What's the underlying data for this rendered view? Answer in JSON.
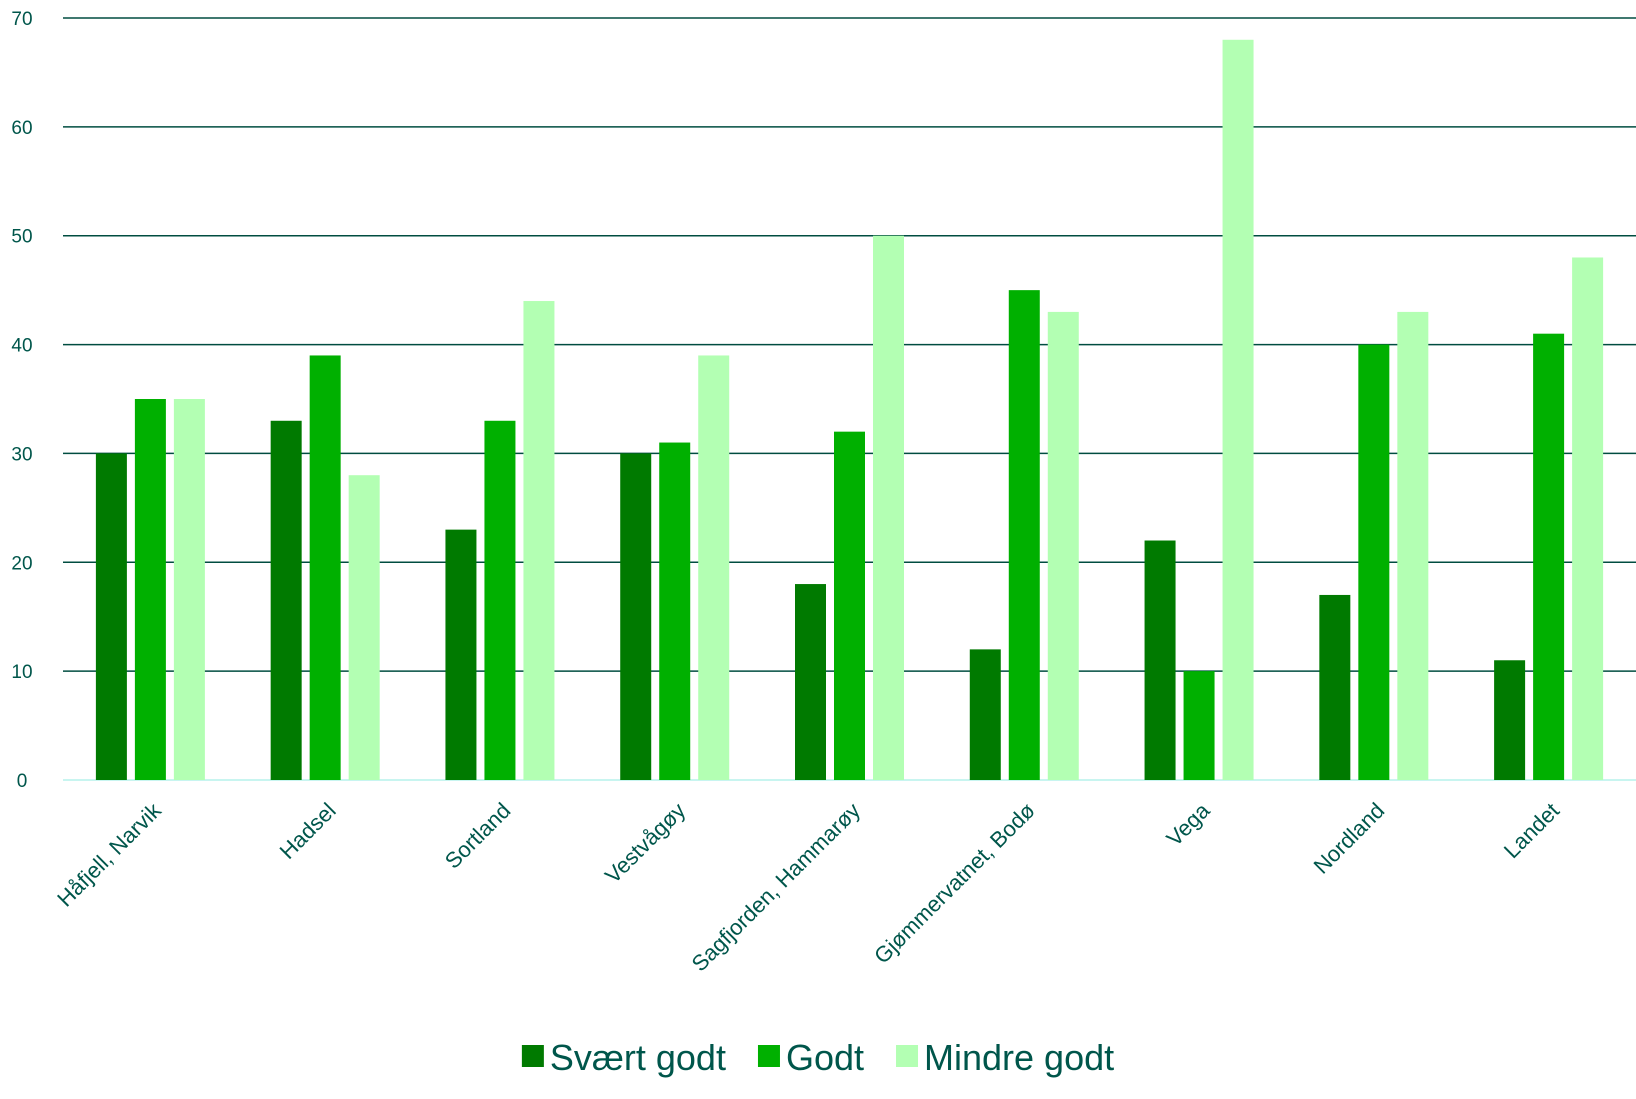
{
  "chart_data": {
    "type": "bar",
    "title": "",
    "xlabel": "",
    "ylabel": "",
    "ylim": [
      0,
      70
    ],
    "yticks": [
      0,
      10,
      20,
      30,
      40,
      50,
      60,
      70
    ],
    "grid": true,
    "legend_position": "bottom",
    "categories": [
      "Håfjell, Narvik",
      "Hadsel",
      "Sortland",
      "Vestvågøy",
      "Sagfjorden, Hammarøy",
      "Gjømmervatnet, Bodø",
      "Vega",
      "Nordland",
      "Landet"
    ],
    "series": [
      {
        "name": "Svært godt",
        "color": "#007a00",
        "values": [
          30,
          33,
          23,
          30,
          18,
          12,
          22,
          17,
          11
        ]
      },
      {
        "name": "Godt",
        "color": "#00b000",
        "values": [
          35,
          39,
          33,
          31,
          32,
          45,
          10,
          40,
          41
        ]
      },
      {
        "name": "Mindre godt",
        "color": "#b3ffb3",
        "values": [
          35,
          28,
          44,
          39,
          50,
          43,
          68,
          43,
          48
        ]
      }
    ]
  },
  "colors": {
    "text": "#00564b",
    "gridline": "#004d40",
    "baseline": "#c8f5f0"
  }
}
